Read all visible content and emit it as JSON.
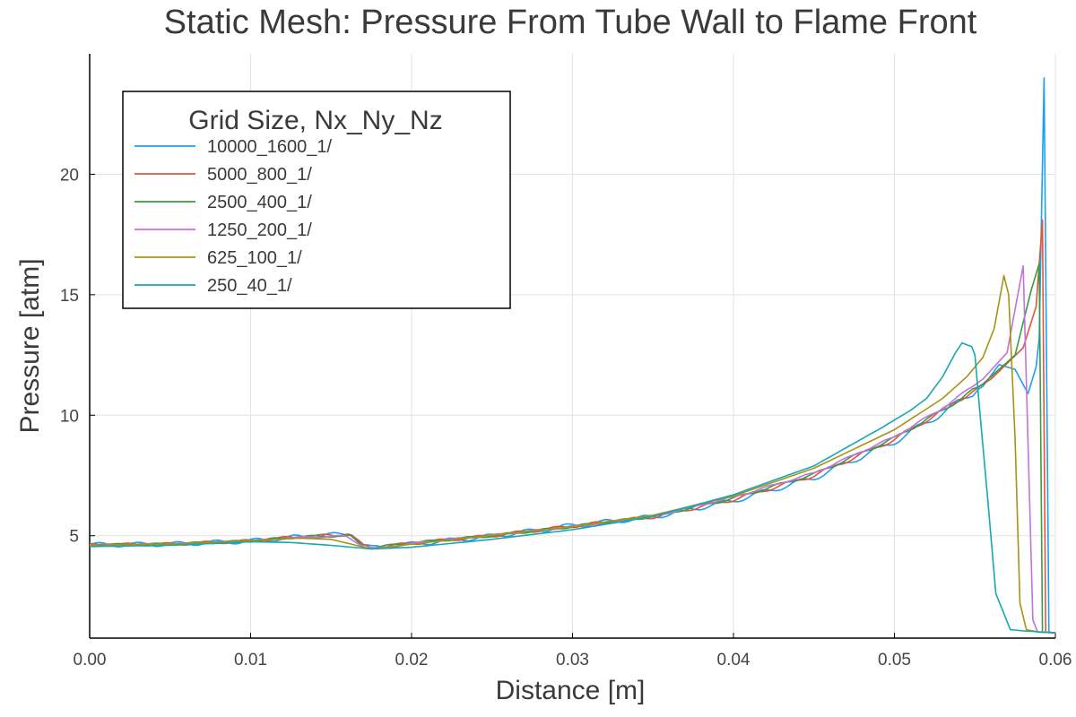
{
  "chart_data": {
    "type": "line",
    "title": "Static Mesh: Pressure From Tube Wall to Flame Front",
    "xlabel": "Distance [m]",
    "ylabel": "Pressure [atm]",
    "xlim": [
      0,
      0.06
    ],
    "ylim": [
      0.75,
      25
    ],
    "xticks": [
      0.0,
      0.01,
      0.02,
      0.03,
      0.04,
      0.05,
      0.06
    ],
    "xtick_labels": [
      "0.00",
      "0.01",
      "0.02",
      "0.03",
      "0.04",
      "0.05",
      "0.06"
    ],
    "yticks": [
      5,
      10,
      15,
      20
    ],
    "ytick_labels": [
      "5",
      "10",
      "15",
      "20"
    ],
    "grid": true,
    "legend": {
      "title": "Grid Size, Nx_Ny_Nz",
      "placement": "top-left"
    },
    "series": [
      {
        "name": "10000_1600_1/",
        "color": "#1f9ef2",
        "noise": 0.06,
        "points": [
          [
            0,
            4.62
          ],
          [
            0.005,
            4.65
          ],
          [
            0.01,
            4.78
          ],
          [
            0.013,
            4.95
          ],
          [
            0.0155,
            5.05
          ],
          [
            0.0163,
            5.12
          ],
          [
            0.017,
            4.6
          ],
          [
            0.0175,
            4.5
          ],
          [
            0.02,
            4.65
          ],
          [
            0.025,
            4.98
          ],
          [
            0.03,
            5.42
          ],
          [
            0.035,
            5.78
          ],
          [
            0.04,
            6.45
          ],
          [
            0.045,
            7.4
          ],
          [
            0.05,
            8.9
          ],
          [
            0.053,
            10.1
          ],
          [
            0.0555,
            11.2
          ],
          [
            0.0565,
            12.1
          ],
          [
            0.0575,
            11.9
          ],
          [
            0.0583,
            10.9
          ],
          [
            0.0588,
            12.0
          ],
          [
            0.059,
            13.2
          ],
          [
            0.0593,
            24.0
          ],
          [
            0.0596,
            1.0
          ],
          [
            0.06,
            0.97
          ]
        ]
      },
      {
        "name": "5000_800_1/",
        "color": "#e2553b",
        "noise": 0.04,
        "points": [
          [
            0,
            4.62
          ],
          [
            0.005,
            4.65
          ],
          [
            0.01,
            4.78
          ],
          [
            0.013,
            4.95
          ],
          [
            0.0155,
            5.03
          ],
          [
            0.0162,
            5.05
          ],
          [
            0.017,
            4.58
          ],
          [
            0.0175,
            4.5
          ],
          [
            0.02,
            4.68
          ],
          [
            0.025,
            5.0
          ],
          [
            0.03,
            5.4
          ],
          [
            0.035,
            5.78
          ],
          [
            0.04,
            6.5
          ],
          [
            0.045,
            7.5
          ],
          [
            0.05,
            9.0
          ],
          [
            0.053,
            10.2
          ],
          [
            0.056,
            11.5
          ],
          [
            0.058,
            12.8
          ],
          [
            0.0588,
            14.5
          ],
          [
            0.0592,
            18.1
          ],
          [
            0.0594,
            1.0
          ],
          [
            0.06,
            0.97
          ]
        ]
      },
      {
        "name": "2500_400_1/",
        "color": "#3a9a45",
        "noise": 0.03,
        "points": [
          [
            0,
            4.62
          ],
          [
            0.005,
            4.65
          ],
          [
            0.01,
            4.78
          ],
          [
            0.013,
            4.95
          ],
          [
            0.0155,
            5.0
          ],
          [
            0.0161,
            5.02
          ],
          [
            0.017,
            4.56
          ],
          [
            0.0175,
            4.5
          ],
          [
            0.02,
            4.7
          ],
          [
            0.025,
            5.0
          ],
          [
            0.03,
            5.38
          ],
          [
            0.035,
            5.8
          ],
          [
            0.04,
            6.55
          ],
          [
            0.045,
            7.55
          ],
          [
            0.05,
            9.05
          ],
          [
            0.053,
            10.2
          ],
          [
            0.0555,
            11.3
          ],
          [
            0.0575,
            12.5
          ],
          [
            0.0585,
            15.2
          ],
          [
            0.059,
            16.3
          ],
          [
            0.0592,
            1.0
          ],
          [
            0.06,
            0.97
          ]
        ]
      },
      {
        "name": "1250_200_1/",
        "color": "#c272d8",
        "noise": 0.02,
        "points": [
          [
            0,
            4.62
          ],
          [
            0.005,
            4.65
          ],
          [
            0.01,
            4.78
          ],
          [
            0.013,
            4.93
          ],
          [
            0.0155,
            4.98
          ],
          [
            0.016,
            4.95
          ],
          [
            0.0172,
            4.5
          ],
          [
            0.018,
            4.48
          ],
          [
            0.02,
            4.68
          ],
          [
            0.025,
            5.02
          ],
          [
            0.03,
            5.38
          ],
          [
            0.035,
            5.8
          ],
          [
            0.04,
            6.6
          ],
          [
            0.045,
            7.6
          ],
          [
            0.05,
            9.1
          ],
          [
            0.053,
            10.3
          ],
          [
            0.0555,
            11.5
          ],
          [
            0.057,
            12.6
          ],
          [
            0.058,
            16.2
          ],
          [
            0.0586,
            1.5
          ],
          [
            0.0589,
            1.0
          ],
          [
            0.06,
            0.97
          ]
        ]
      },
      {
        "name": "625_100_1/",
        "color": "#a39416",
        "noise": 0.0,
        "points": [
          [
            0,
            4.62
          ],
          [
            0.005,
            4.66
          ],
          [
            0.01,
            4.8
          ],
          [
            0.013,
            4.9
          ],
          [
            0.015,
            4.85
          ],
          [
            0.0175,
            4.45
          ],
          [
            0.02,
            4.65
          ],
          [
            0.025,
            5.02
          ],
          [
            0.03,
            5.38
          ],
          [
            0.035,
            5.85
          ],
          [
            0.04,
            6.65
          ],
          [
            0.045,
            7.8
          ],
          [
            0.05,
            9.4
          ],
          [
            0.053,
            10.7
          ],
          [
            0.0545,
            11.6
          ],
          [
            0.0555,
            12.4
          ],
          [
            0.0562,
            13.6
          ],
          [
            0.0568,
            15.8
          ],
          [
            0.0571,
            15.0
          ],
          [
            0.0575,
            9.0
          ],
          [
            0.0578,
            2.2
          ],
          [
            0.0582,
            1.1
          ],
          [
            0.059,
            1.0
          ],
          [
            0.06,
            0.97
          ]
        ]
      },
      {
        "name": "250_40_1/",
        "color": "#17a8b2",
        "noise": 0.0,
        "points": [
          [
            0,
            4.55
          ],
          [
            0.005,
            4.6
          ],
          [
            0.01,
            4.75
          ],
          [
            0.0125,
            4.72
          ],
          [
            0.015,
            4.6
          ],
          [
            0.0175,
            4.45
          ],
          [
            0.02,
            4.52
          ],
          [
            0.025,
            4.85
          ],
          [
            0.03,
            5.25
          ],
          [
            0.035,
            5.8
          ],
          [
            0.04,
            6.7
          ],
          [
            0.045,
            7.9
          ],
          [
            0.049,
            9.4
          ],
          [
            0.051,
            10.2
          ],
          [
            0.052,
            10.7
          ],
          [
            0.053,
            11.6
          ],
          [
            0.0538,
            12.6
          ],
          [
            0.0542,
            13.0
          ],
          [
            0.0548,
            12.85
          ],
          [
            0.055,
            12.5
          ],
          [
            0.0553,
            10.2
          ],
          [
            0.0558,
            6.5
          ],
          [
            0.0563,
            2.6
          ],
          [
            0.0572,
            1.1
          ],
          [
            0.058,
            1.05
          ],
          [
            0.06,
            0.97
          ]
        ]
      }
    ]
  }
}
